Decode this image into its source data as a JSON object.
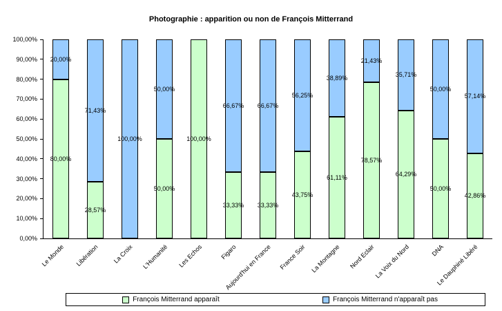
{
  "chart_data": {
    "type": "bar",
    "stacked": true,
    "percent_stacked": true,
    "title": "Photographie : apparition ou non de François Mitterrand",
    "categories": [
      "Le Monde",
      "Libération",
      "La Croix",
      "L'Humanité",
      "Les Echos",
      "Figaro",
      "Aujourd'hui en France",
      "France Soir",
      "La Montagne",
      "Nord Eclair",
      "La Voix du Nord",
      "DNA",
      "Le Dauphiné Libéré"
    ],
    "series": [
      {
        "name": "François Mitterrand apparaît",
        "color": "#ccffcc",
        "values": [
          80.0,
          28.57,
          0.0,
          50.0,
          100.0,
          33.33,
          33.33,
          43.75,
          61.11,
          78.57,
          64.29,
          50.0,
          42.86
        ],
        "labels": [
          "80,00%",
          "28,57%",
          "",
          "50,00%",
          "100,00%",
          "33,33%",
          "33,33%",
          "43,75%",
          "61,11%",
          "78,57%",
          "64,29%",
          "50,00%",
          "42,86%"
        ]
      },
      {
        "name": "François Mitterrand n'apparaît pas",
        "color": "#99ccff",
        "values": [
          20.0,
          71.43,
          100.0,
          50.0,
          0.0,
          66.67,
          66.67,
          56.25,
          38.89,
          21.43,
          35.71,
          50.0,
          57.14
        ],
        "labels": [
          "20,00%",
          "71,43%",
          "100,00%",
          "50,00%",
          "",
          "66,67%",
          "66,67%",
          "56,25%",
          "38,89%",
          "21,43%",
          "35,71%",
          "50,00%",
          "57,14%"
        ]
      }
    ],
    "ylim": [
      0,
      100
    ],
    "ytick_step": 10,
    "ytick_labels": [
      "0,00%",
      "10,00%",
      "20,00%",
      "30,00%",
      "40,00%",
      "50,00%",
      "60,00%",
      "70,00%",
      "80,00%",
      "90,00%",
      "100,00%"
    ],
    "grid": false,
    "legend_position": "bottom"
  }
}
